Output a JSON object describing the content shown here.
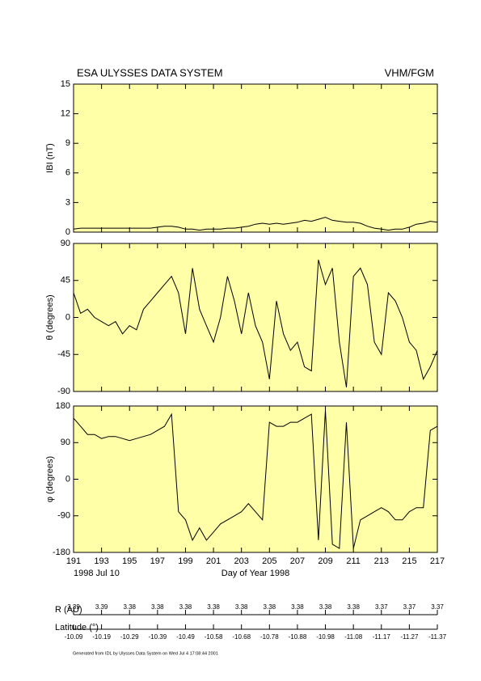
{
  "header": {
    "title": "ESA ULYSSES DATA SYSTEM",
    "instrument": "VHM/FGM"
  },
  "chart_data": [
    {
      "type": "line",
      "ylabel": "IBI (nT)",
      "color": "#000000",
      "background": "#ffffa8",
      "xlim": [
        191,
        217
      ],
      "xticks": [
        191,
        193,
        195,
        197,
        199,
        201,
        203,
        205,
        207,
        209,
        211,
        213,
        215,
        217
      ],
      "ylim": [
        0,
        15
      ],
      "yticks": [
        0,
        3,
        6,
        9,
        12,
        15
      ],
      "x": [
        191,
        191.5,
        192,
        192.5,
        193,
        193.5,
        194,
        194.5,
        195,
        195.5,
        196,
        196.5,
        197,
        197.5,
        198,
        198.5,
        199,
        199.5,
        200,
        200.5,
        201,
        201.5,
        202,
        202.5,
        203,
        203.5,
        204,
        204.5,
        205,
        205.5,
        206,
        206.5,
        207,
        207.5,
        208,
        208.5,
        209,
        209.5,
        210,
        210.5,
        211,
        211.5,
        212,
        212.5,
        213,
        213.5,
        214,
        214.5,
        215,
        215.5,
        216,
        216.5,
        217
      ],
      "values": [
        0.3,
        0.4,
        0.4,
        0.4,
        0.4,
        0.4,
        0.4,
        0.4,
        0.4,
        0.4,
        0.4,
        0.4,
        0.5,
        0.6,
        0.6,
        0.5,
        0.3,
        0.3,
        0.2,
        0.3,
        0.3,
        0.3,
        0.4,
        0.4,
        0.5,
        0.6,
        0.8,
        0.9,
        0.8,
        0.9,
        0.8,
        0.9,
        1.0,
        1.2,
        1.1,
        1.3,
        1.5,
        1.2,
        1.1,
        1.0,
        1.0,
        0.9,
        0.6,
        0.4,
        0.3,
        0.2,
        0.3,
        0.3,
        0.5,
        0.8,
        0.9,
        1.1,
        1.0
      ]
    },
    {
      "type": "line",
      "ylabel": "θ (degrees)",
      "color": "#000000",
      "background": "#ffffa8",
      "xlim": [
        191,
        217
      ],
      "xticks": [
        191,
        193,
        195,
        197,
        199,
        201,
        203,
        205,
        207,
        209,
        211,
        213,
        215,
        217
      ],
      "ylim": [
        -90,
        90
      ],
      "yticks": [
        -90,
        -45,
        0,
        45,
        90
      ],
      "x": [
        191,
        191.5,
        192,
        192.5,
        193,
        193.5,
        194,
        194.5,
        195,
        195.5,
        196,
        196.5,
        197,
        197.5,
        198,
        198.5,
        199,
        199.5,
        200,
        200.5,
        201,
        201.5,
        202,
        202.5,
        203,
        203.5,
        204,
        204.5,
        205,
        205.5,
        206,
        206.5,
        207,
        207.5,
        208,
        208.5,
        209,
        209.5,
        210,
        210.5,
        211,
        211.5,
        212,
        212.5,
        213,
        213.5,
        214,
        214.5,
        215,
        215.5,
        216,
        216.5,
        217
      ],
      "values": [
        30,
        5,
        10,
        0,
        -5,
        -10,
        -5,
        -20,
        -10,
        -15,
        10,
        20,
        30,
        40,
        50,
        30,
        -20,
        60,
        10,
        -10,
        -30,
        0,
        50,
        20,
        -20,
        30,
        -10,
        -30,
        -75,
        20,
        -20,
        -40,
        -30,
        -60,
        -65,
        70,
        40,
        60,
        -30,
        -85,
        50,
        60,
        40,
        -30,
        -45,
        30,
        20,
        0,
        -30,
        -40,
        -75,
        -60,
        -40
      ]
    },
    {
      "type": "line",
      "ylabel": "φ (degrees)",
      "color": "#000000",
      "background": "#ffffa8",
      "xlabel": "Day of Year 1998",
      "date_label": "1998 Jul 10",
      "xlim": [
        191,
        217
      ],
      "xticks": [
        191,
        193,
        195,
        197,
        199,
        201,
        203,
        205,
        207,
        209,
        211,
        213,
        215,
        217
      ],
      "ylim": [
        -180,
        180
      ],
      "yticks": [
        -180,
        -90,
        0,
        90,
        180
      ],
      "x": [
        191,
        191.5,
        192,
        192.5,
        193,
        193.5,
        194,
        194.5,
        195,
        195.5,
        196,
        196.5,
        197,
        197.5,
        198,
        198.5,
        199,
        199.5,
        200,
        200.5,
        201,
        201.5,
        202,
        202.5,
        203,
        203.5,
        204,
        204.5,
        205,
        205.5,
        206,
        206.5,
        207,
        207.5,
        208,
        208.5,
        209,
        209.5,
        210,
        210.5,
        211,
        211.5,
        212,
        212.5,
        213,
        213.5,
        214,
        214.5,
        215,
        215.5,
        216,
        216.5,
        217
      ],
      "values": [
        150,
        130,
        110,
        110,
        100,
        105,
        105,
        100,
        95,
        100,
        105,
        110,
        120,
        130,
        160,
        -80,
        -100,
        -150,
        -120,
        -150,
        -130,
        -110,
        -100,
        -90,
        -80,
        -60,
        -80,
        -100,
        140,
        130,
        130,
        140,
        140,
        150,
        160,
        -150,
        170,
        -160,
        -170,
        140,
        -170,
        -100,
        -90,
        -80,
        -70,
        -80,
        -100,
        -100,
        -80,
        -70,
        -70,
        120,
        130
      ]
    }
  ],
  "orbit": {
    "r_label": "R (AU)",
    "r_values": [
      3.39,
      3.39,
      3.38,
      3.38,
      3.38,
      3.38,
      3.38,
      3.38,
      3.38,
      3.38,
      3.38,
      3.37,
      3.37,
      3.37
    ],
    "lat_label": "Latitude (°)",
    "lat_values": [
      -10.09,
      -10.19,
      -10.29,
      -10.39,
      -10.49,
      -10.58,
      -10.68,
      -10.78,
      -10.88,
      -10.98,
      -11.08,
      -11.17,
      -11.27,
      -11.37
    ]
  },
  "footer": "Generated from IDL by Ulysses Data System on Wed Jul  4 17:08:44 2001"
}
